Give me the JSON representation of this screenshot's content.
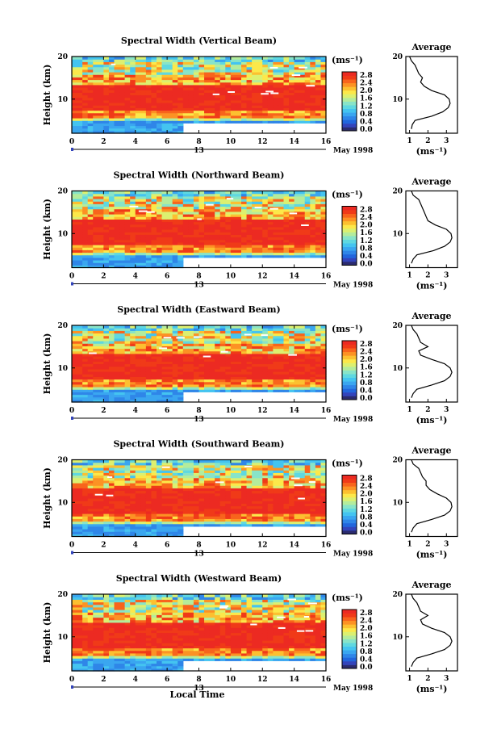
{
  "figure": {
    "xlabel": "Local Time",
    "date_label": "May 1998",
    "day_label": "13"
  },
  "colorbar": {
    "unit": "(ms⁻¹)",
    "ticks": [
      "2.8",
      "2.4",
      "2.0",
      "1.6",
      "1.2",
      "0.8",
      "0.4",
      "0.0"
    ],
    "colors": [
      "#2b2b6e",
      "#3344bb",
      "#2266dd",
      "#2f86e8",
      "#3aa6f0",
      "#44c4f0",
      "#5fd8e0",
      "#88e4c8",
      "#b4ec9c",
      "#dcf070",
      "#fce84a",
      "#fcc030",
      "#fc9224",
      "#f8641c",
      "#f03a18",
      "#ec2a22"
    ]
  },
  "chart_data": [
    {
      "type": "heatmap",
      "title": "Spectral Width (Vertical Beam)",
      "ylabel": "Height (km)",
      "xlim": [
        0,
        16
      ],
      "ylim": [
        2,
        20
      ],
      "xticks": [
        "0",
        "2",
        "4",
        "6",
        "8",
        "10",
        "12",
        "14",
        "16"
      ],
      "yticks": [
        "10",
        "20"
      ],
      "profile": {
        "title": "Average",
        "xlabel": "(ms⁻¹)",
        "xticks": [
          "1",
          "2",
          "3"
        ],
        "yticks": [
          "10",
          "20"
        ],
        "heights": [
          3,
          4,
          5,
          6,
          7,
          8,
          9,
          10,
          11,
          12,
          13,
          14,
          15,
          16,
          17,
          18,
          19,
          20
        ],
        "values": [
          1.1,
          1.15,
          1.3,
          2.2,
          2.8,
          3.1,
          3.2,
          3.15,
          2.9,
          2.2,
          1.8,
          1.6,
          1.7,
          1.5,
          1.4,
          1.3,
          1.1,
          1.0
        ]
      }
    },
    {
      "type": "heatmap",
      "title": "Spectral Width (Northward Beam)",
      "ylabel": "Height (km)",
      "xlim": [
        0,
        16
      ],
      "ylim": [
        2,
        20
      ],
      "xticks": [
        "0",
        "2",
        "4",
        "6",
        "8",
        "10",
        "12",
        "14",
        "16"
      ],
      "yticks": [
        "10",
        "20"
      ],
      "profile": {
        "title": "Average",
        "xlabel": "(ms⁻¹)",
        "xticks": [
          "1",
          "2",
          "3"
        ],
        "yticks": [
          "10",
          "20"
        ],
        "heights": [
          3,
          4,
          5,
          6,
          7,
          8,
          9,
          10,
          11,
          12,
          13,
          14,
          15,
          16,
          17,
          18,
          19,
          20
        ],
        "values": [
          1.1,
          1.2,
          1.4,
          2.3,
          2.9,
          3.2,
          3.3,
          3.25,
          3.0,
          2.4,
          2.0,
          1.9,
          1.8,
          1.7,
          1.6,
          1.5,
          1.2,
          1.1
        ]
      }
    },
    {
      "type": "heatmap",
      "title": "Spectral Width (Eastward Beam)",
      "ylabel": "Height (km)",
      "xlim": [
        0,
        16
      ],
      "ylim": [
        2,
        20
      ],
      "xticks": [
        "0",
        "2",
        "4",
        "6",
        "8",
        "10",
        "12",
        "14",
        "16"
      ],
      "yticks": [
        "10",
        "20"
      ],
      "profile": {
        "title": "Average",
        "xlabel": "(ms⁻¹)",
        "xticks": [
          "1",
          "2",
          "3"
        ],
        "yticks": [
          "10",
          "20"
        ],
        "heights": [
          3,
          4,
          5,
          6,
          7,
          8,
          9,
          10,
          11,
          12,
          13,
          14,
          15,
          16,
          17,
          18,
          19,
          20
        ],
        "values": [
          1.1,
          1.2,
          1.4,
          2.2,
          2.9,
          3.2,
          3.3,
          3.2,
          2.9,
          2.2,
          1.6,
          1.5,
          2.0,
          1.6,
          1.5,
          1.4,
          1.2,
          1.1
        ]
      }
    },
    {
      "type": "heatmap",
      "title": "Spectral Width (Southward Beam)",
      "ylabel": "Height (km)",
      "xlim": [
        0,
        16
      ],
      "ylim": [
        2,
        20
      ],
      "xticks": [
        "0",
        "2",
        "4",
        "6",
        "8",
        "10",
        "12",
        "14",
        "16"
      ],
      "yticks": [
        "10",
        "20"
      ],
      "profile": {
        "title": "Average",
        "xlabel": "(ms⁻¹)",
        "xticks": [
          "1",
          "2",
          "3"
        ],
        "yticks": [
          "10",
          "20"
        ],
        "heights": [
          3,
          4,
          5,
          6,
          7,
          8,
          9,
          10,
          11,
          12,
          13,
          14,
          15,
          16,
          17,
          18,
          19,
          20
        ],
        "values": [
          1.1,
          1.2,
          1.4,
          2.2,
          2.9,
          3.2,
          3.3,
          3.25,
          3.0,
          2.5,
          2.1,
          1.9,
          1.9,
          1.7,
          1.6,
          1.5,
          1.2,
          1.1
        ]
      }
    },
    {
      "type": "heatmap",
      "title": "Spectral Width (Westward Beam)",
      "ylabel": "Height (km)",
      "xlim": [
        0,
        16
      ],
      "ylim": [
        2,
        20
      ],
      "xticks": [
        "0",
        "2",
        "4",
        "6",
        "8",
        "10",
        "12",
        "14",
        "16"
      ],
      "yticks": [
        "10",
        "20"
      ],
      "profile": {
        "title": "Average",
        "xlabel": "(ms⁻¹)",
        "xticks": [
          "1",
          "2",
          "3"
        ],
        "yticks": [
          "10",
          "20"
        ],
        "heights": [
          3,
          4,
          5,
          6,
          7,
          8,
          9,
          10,
          11,
          12,
          13,
          14,
          15,
          16,
          17,
          18,
          19,
          20
        ],
        "values": [
          1.1,
          1.2,
          1.4,
          2.2,
          2.9,
          3.2,
          3.3,
          3.2,
          2.9,
          2.2,
          1.7,
          1.6,
          2.0,
          1.6,
          1.5,
          1.4,
          1.2,
          1.1
        ]
      }
    }
  ]
}
